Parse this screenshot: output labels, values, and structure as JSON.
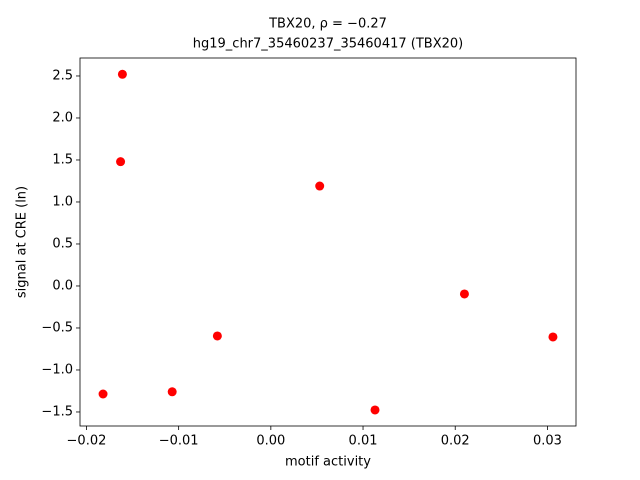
{
  "chart_data": {
    "type": "scatter",
    "title": "TBX20, ρ = −0.27",
    "subtitle": "hg19_chr7_35460237_35460417 (TBX20)",
    "x_label": "motif activity",
    "y_label": "signal at CRE (ln)",
    "color": "#ff0000",
    "x": [
      -0.0161,
      -0.0163,
      0.0053,
      0.021,
      0.0306,
      -0.0058,
      -0.0107,
      -0.0182,
      0.0113
    ],
    "values": [
      2.52,
      1.48,
      1.19,
      -0.095,
      -0.607,
      -0.595,
      -1.26,
      -1.286,
      -1.476
    ],
    "xlim": [
      -0.0207,
      0.0331
    ],
    "ylim": [
      -1.667,
      2.714
    ],
    "xticks": [
      {
        "value": -0.02,
        "label": "−0.02"
      },
      {
        "value": -0.01,
        "label": "−0.01"
      },
      {
        "value": 0,
        "label": "0.00"
      },
      0.01,
      0.02,
      0.03
    ],
    "yticks": [
      {
        "value": -1.5,
        "label": "−1.5"
      },
      {
        "value": -1,
        "label": "−1.0"
      },
      {
        "value": -0.5,
        "label": "−0.5"
      },
      {
        "value": 0,
        "label": "0.0"
      },
      0.5,
      {
        "value": 1,
        "label": "1.0"
      },
      1.5,
      {
        "value": 2,
        "label": "2.0"
      },
      2.5
    ]
  }
}
